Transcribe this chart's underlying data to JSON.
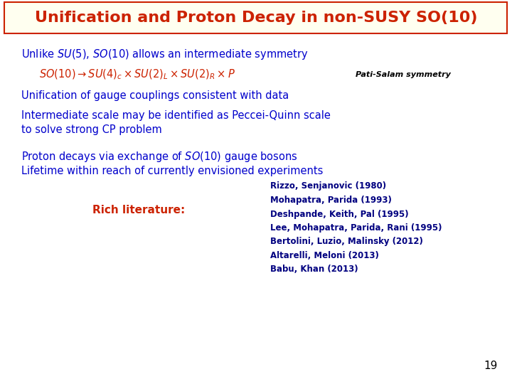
{
  "title": "Unification and Proton Decay in non-SUSY SO(10)",
  "title_color": "#cc2200",
  "title_bg": "#fffff0",
  "title_border": "#cc2200",
  "background_color": "#ffffff",
  "blue_color": "#0000cc",
  "red_color": "#cc2200",
  "dark_blue_color": "#000080",
  "black_color": "#000000",
  "line1": "Unlike $SU(5)$, $SO(10)$ allows an intermediate symmetry",
  "line2_math": "$SO(10) \\rightarrow SU(4)_c \\times SU(2)_L \\times SU(2)_R \\times P$",
  "line2_note": "Pati-Salam symmetry",
  "line3": "Unification of gauge couplings consistent with data",
  "line4a": "Intermediate scale may be identified as Peccei-Quinn scale",
  "line4b": "to solve strong CP problem",
  "line5": "Proton decays via exchange of $SO(10)$ gauge bosons",
  "line6": "Lifetime within reach of currently envisioned experiments",
  "rich_lit": "Rich literature:",
  "refs": [
    "Rizzo, Senjanovic (1980)",
    "Mohapatra, Parida (1993)",
    "Deshpande, Keith, Pal (1995)",
    "Lee, Mohapatra, Parida, Rani (1995)",
    "Bertolini, Luzio, Malinsky (2012)",
    "Altarelli, Meloni (2013)",
    "Babu, Khan (2013)"
  ],
  "page_number": "19"
}
